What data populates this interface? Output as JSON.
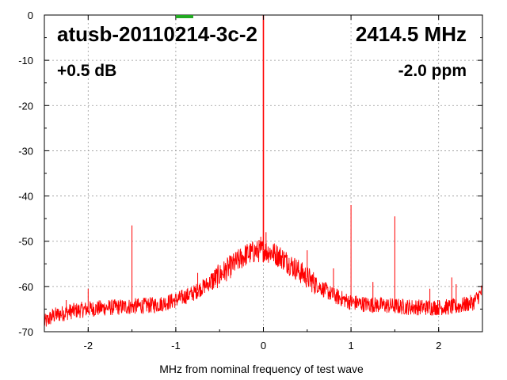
{
  "chart_data": {
    "type": "line",
    "title_left": "atusb-20110214-3c-2",
    "title_right": "2414.5 MHz",
    "annotation_left": "+0.5 dB",
    "annotation_right": "-2.0 ppm",
    "xlabel": "MHz from nominal frequency of test wave",
    "ylabel": "",
    "xlim": [
      -2.5,
      2.5
    ],
    "ylim": [
      -70,
      0
    ],
    "xticks": [
      -2,
      -1,
      0,
      1,
      2
    ],
    "yticks": [
      0,
      -10,
      -20,
      -30,
      -40,
      -50,
      -60,
      -70
    ],
    "grid": true,
    "series_color": "#ff0000",
    "marker_color": "#22aa22",
    "marker_x": -0.9,
    "noise_floor": {
      "x": [
        -2.5,
        -2.4,
        -2.2,
        -2.0,
        -1.8,
        -1.6,
        -1.4,
        -1.2,
        -1.0,
        -0.8,
        -0.6,
        -0.4,
        -0.3,
        -0.2,
        -0.1,
        0.0,
        0.1,
        0.2,
        0.3,
        0.4,
        0.6,
        0.8,
        1.0,
        1.2,
        1.4,
        1.6,
        1.8,
        2.0,
        2.2,
        2.4,
        2.5
      ],
      "y": [
        -68,
        -66.5,
        -65.5,
        -65,
        -64.7,
        -64.5,
        -64.3,
        -64,
        -63,
        -61.5,
        -59,
        -56,
        -54.5,
        -53,
        -52.3,
        -52,
        -52.5,
        -53.5,
        -55,
        -56.5,
        -59.5,
        -62,
        -63.5,
        -64,
        -64.2,
        -64.5,
        -64.6,
        -64.6,
        -64.5,
        -63.5,
        -61
      ]
    },
    "spurs": [
      {
        "x": 0.0,
        "y": 0
      },
      {
        "x": -1.5,
        "y": -46.5
      },
      {
        "x": 1.0,
        "y": -42
      },
      {
        "x": 1.5,
        "y": -44.5
      },
      {
        "x": -2.0,
        "y": -60.5
      },
      {
        "x": -0.75,
        "y": -57
      },
      {
        "x": 0.5,
        "y": -52
      },
      {
        "x": 0.27,
        "y": -53
      },
      {
        "x": 0.03,
        "y": -48
      },
      {
        "x": -0.03,
        "y": -49
      },
      {
        "x": 1.25,
        "y": -59
      },
      {
        "x": 2.15,
        "y": -58
      },
      {
        "x": 2.2,
        "y": -59.5
      },
      {
        "x": -2.25,
        "y": -63
      },
      {
        "x": 1.9,
        "y": -60.5
      },
      {
        "x": 0.8,
        "y": -56
      }
    ]
  }
}
